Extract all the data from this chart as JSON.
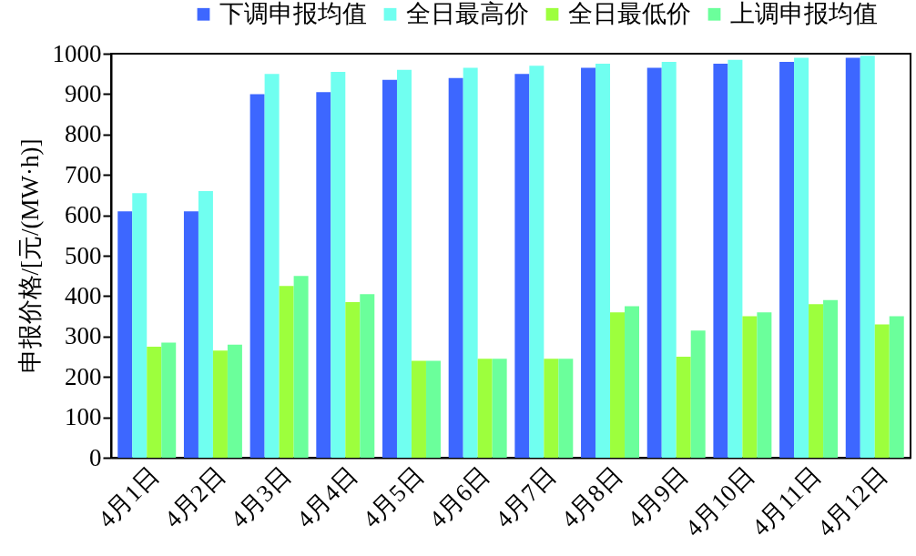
{
  "chart_data": {
    "type": "bar",
    "ylabel": "申报价格/[元/(MW·h)]",
    "categories": [
      "4月1日",
      "4月2日",
      "4月3日",
      "4月4日",
      "4月5日",
      "4月6日",
      "4月7日",
      "4月8日",
      "4月9日",
      "4月10日",
      "4月11日",
      "4月12日"
    ],
    "series": [
      {
        "name": "下调申报均值",
        "color": "#3d67ff",
        "values": [
          610,
          610,
          900,
          905,
          935,
          940,
          950,
          965,
          965,
          975,
          980,
          990
        ]
      },
      {
        "name": "全日最高价",
        "color": "#70fff0",
        "values": [
          655,
          660,
          950,
          955,
          960,
          965,
          970,
          975,
          980,
          985,
          990,
          995
        ]
      },
      {
        "name": "全日最低价",
        "color": "#9dff3d",
        "values": [
          275,
          265,
          425,
          385,
          240,
          245,
          245,
          360,
          250,
          350,
          380,
          330
        ]
      },
      {
        "name": "上调申报均值",
        "color": "#6bff9b",
        "values": [
          285,
          280,
          450,
          405,
          240,
          245,
          245,
          375,
          315,
          360,
          390,
          350
        ]
      }
    ],
    "ylim": [
      0,
      1000
    ],
    "yticks": [
      0,
      100,
      200,
      300,
      400,
      500,
      600,
      700,
      800,
      900,
      1000
    ],
    "grid": false,
    "legend": "top"
  }
}
